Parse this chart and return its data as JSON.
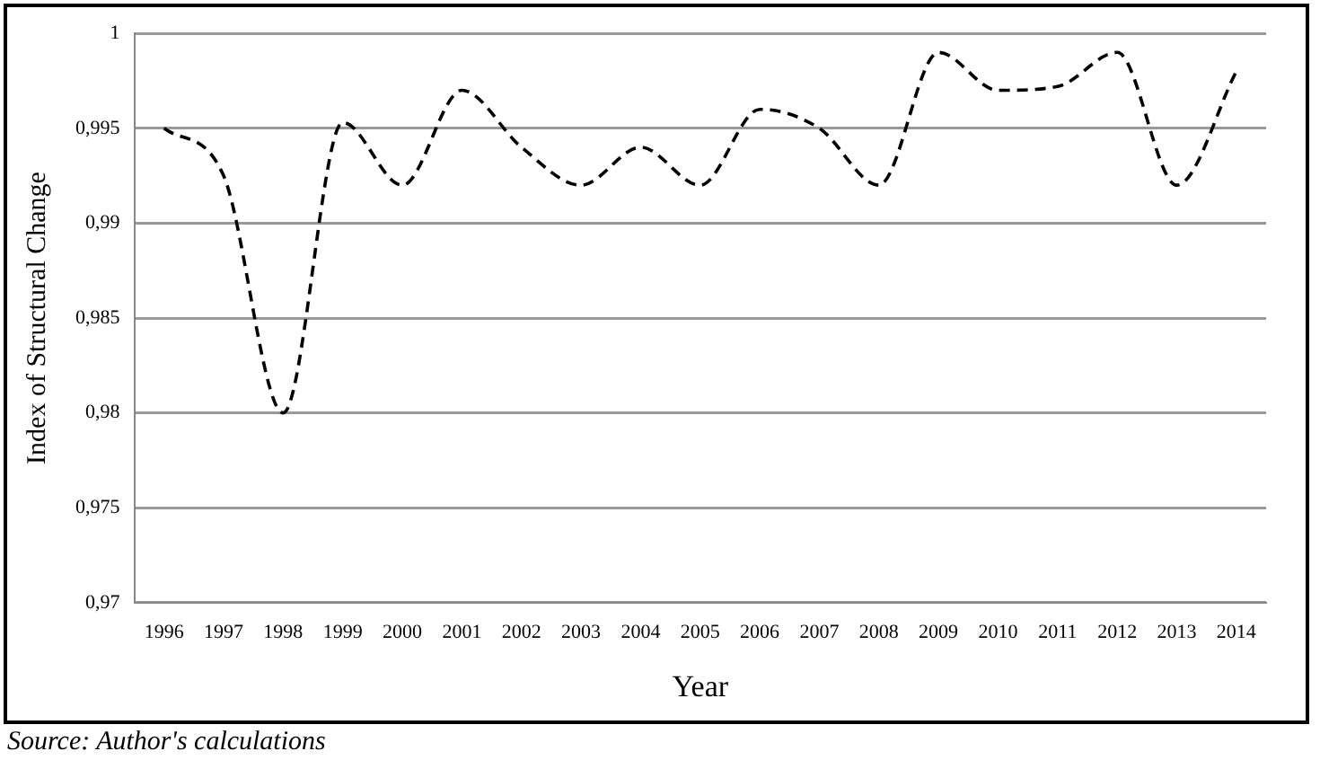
{
  "chart_data": {
    "type": "line",
    "xlabel": "Year",
    "ylabel": "Index of Structural Change",
    "categories": [
      "1996",
      "1997",
      "1998",
      "1999",
      "2000",
      "2001",
      "2002",
      "2003",
      "2004",
      "2005",
      "2006",
      "2007",
      "2008",
      "2009",
      "2010",
      "2011",
      "2012",
      "2013",
      "2014"
    ],
    "series": [
      {
        "color": "#000000",
        "values": [
          0.995,
          0.9925,
          0.98,
          0.9953,
          0.992,
          0.997,
          0.994,
          0.992,
          0.994,
          0.992,
          0.996,
          0.995,
          0.992,
          0.999,
          0.997,
          0.9972,
          0.999,
          0.992,
          0.998
        ]
      }
    ],
    "ylim": [
      0.97,
      1
    ],
    "yticks": [
      {
        "value": 0.97,
        "label": "0,97"
      },
      {
        "value": 0.975,
        "label": "0,975"
      },
      {
        "value": 0.98,
        "label": "0,98"
      },
      {
        "value": 0.985,
        "label": "0,985"
      },
      {
        "value": 0.99,
        "label": "0,99"
      },
      {
        "value": 0.995,
        "label": "0,995"
      },
      1
    ],
    "grid": "y",
    "line_style": "dashed",
    "marker": "none",
    "legend": false,
    "annotations": [
      "Source: Author's calculations"
    ]
  }
}
